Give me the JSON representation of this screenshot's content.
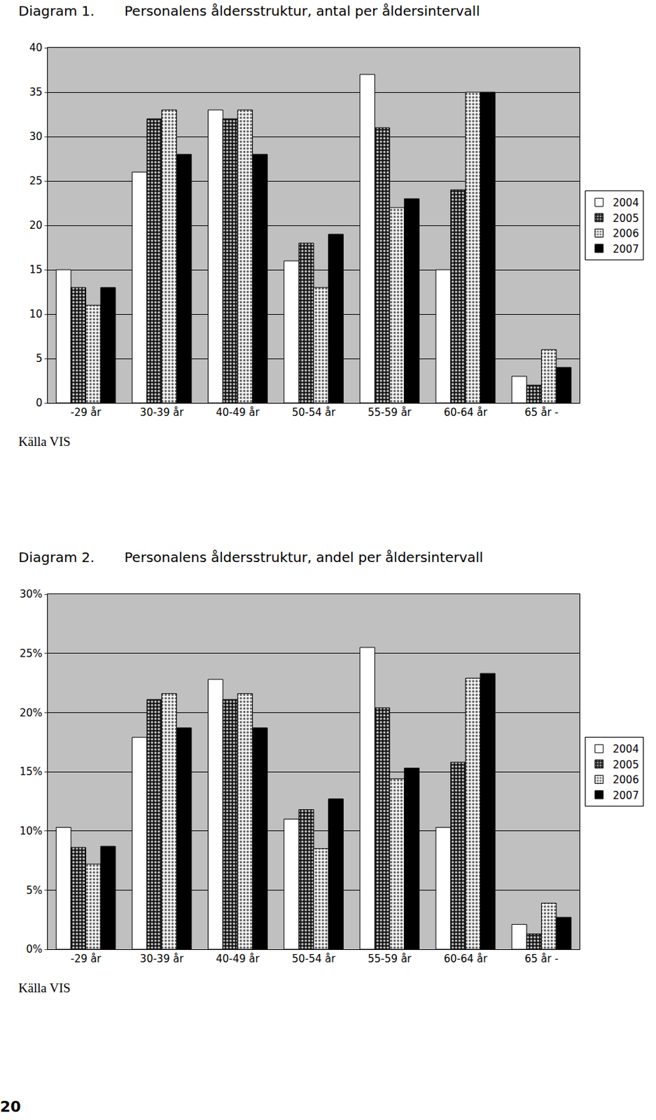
{
  "page": "20",
  "chart_data": [
    {
      "type": "bar",
      "title": "Diagram 1.",
      "subtitle": "Personalens åldersstruktur, antal per åldersintervall",
      "annotations": [
        "Källa VIS"
      ],
      "categories": [
        "-29 år",
        "30-39 år",
        "40-49 år",
        "50-54 år",
        "55-59 år",
        "60-64 år",
        "65 år -"
      ],
      "series": [
        {
          "name": "2004",
          "color": "#ffffff",
          "values": [
            15,
            26,
            33,
            16,
            37,
            15,
            3
          ]
        },
        {
          "name": "2005",
          "color": "#1a1a1a",
          "marker": "dotted",
          "values": [
            13,
            32,
            32,
            18,
            31,
            24,
            2
          ]
        },
        {
          "name": "2006",
          "color": "#f2f2f2",
          "marker": "dotted",
          "values": [
            11,
            33,
            33,
            13,
            22,
            35,
            6
          ]
        },
        {
          "name": "2007",
          "color": "#000000",
          "values": [
            13,
            28,
            28,
            19,
            23,
            35,
            4
          ]
        }
      ],
      "ylim": [
        0,
        40
      ],
      "yticks": [
        0,
        5,
        10,
        15,
        20,
        25,
        30,
        35,
        40
      ],
      "grid": true,
      "legend": "right"
    },
    {
      "type": "bar",
      "title": "Diagram 2.",
      "subtitle": "Personalens åldersstruktur, andel per åldersintervall",
      "annotations": [
        "Källa VIS"
      ],
      "categories": [
        "-29 år",
        "30-39 år",
        "40-49 år",
        "50-54 år",
        "55-59 år",
        "60-64 år",
        "65 år -"
      ],
      "series": [
        {
          "name": "2004",
          "color": "#ffffff",
          "values": [
            10.3,
            17.9,
            22.8,
            11.0,
            25.5,
            10.3,
            2.1
          ]
        },
        {
          "name": "2005",
          "color": "#1a1a1a",
          "marker": "dotted",
          "values": [
            8.6,
            21.1,
            21.1,
            11.8,
            20.4,
            15.8,
            1.3
          ]
        },
        {
          "name": "2006",
          "color": "#f2f2f2",
          "marker": "dotted",
          "values": [
            7.2,
            21.6,
            21.6,
            8.5,
            14.4,
            22.9,
            3.9
          ]
        },
        {
          "name": "2007",
          "color": "#000000",
          "values": [
            8.7,
            18.7,
            18.7,
            12.7,
            15.3,
            23.3,
            2.7
          ]
        }
      ],
      "ylim": [
        0,
        30
      ],
      "yticks": [
        {
          "value": 0,
          "label": "0%"
        },
        {
          "value": 5,
          "label": "5%"
        },
        {
          "value": 10,
          "label": "10%"
        },
        {
          "value": 15,
          "label": "15%"
        },
        {
          "value": 20,
          "label": "20%"
        },
        {
          "value": 25,
          "label": "25%"
        },
        {
          "value": 30,
          "label": "30%"
        }
      ],
      "grid": true,
      "legend": "right"
    }
  ]
}
